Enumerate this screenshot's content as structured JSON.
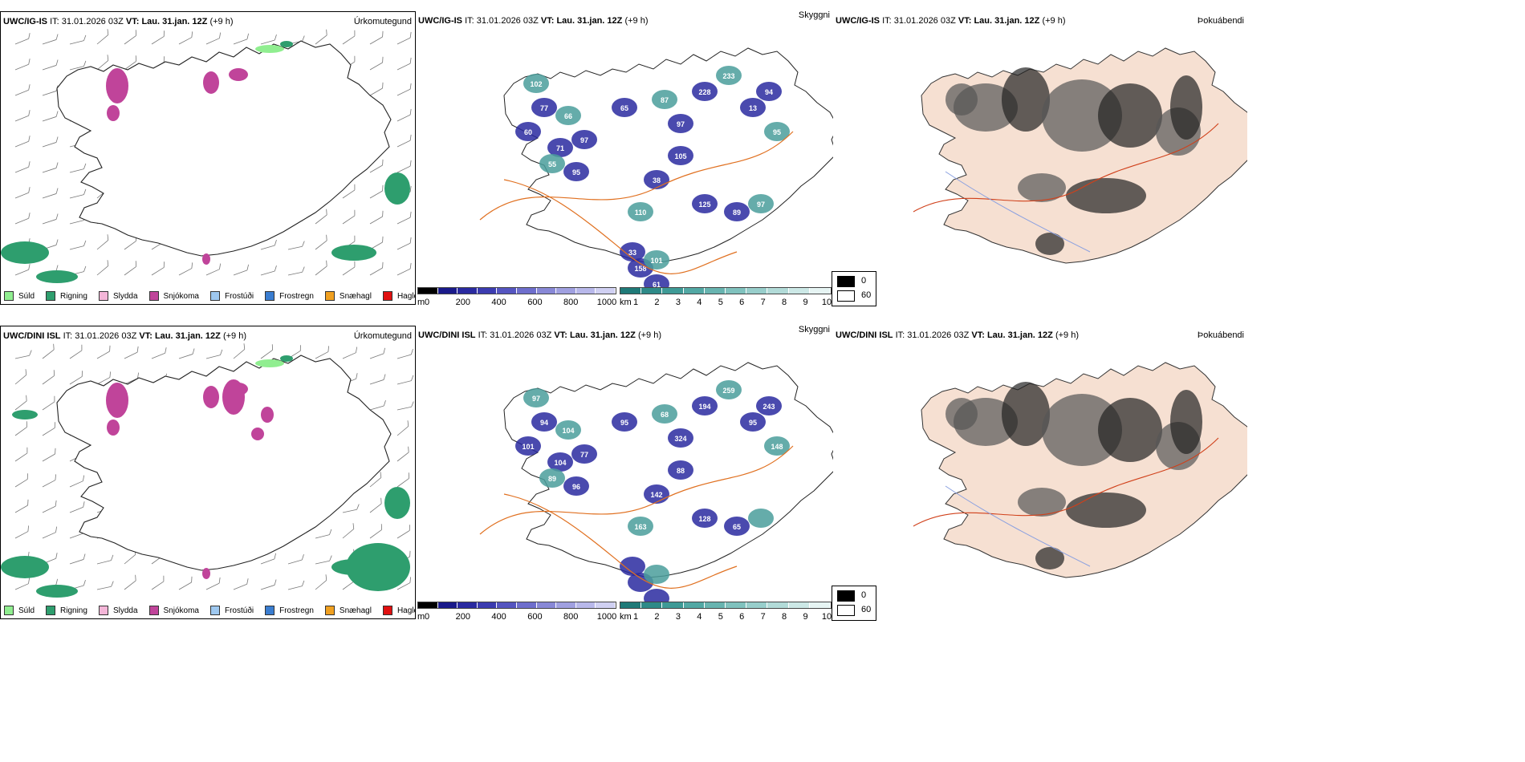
{
  "rows": [
    {
      "id": "ig",
      "model": "UWC/IG-IS",
      "it_label": "IT:",
      "it_value": "31.01.2026 03Z",
      "vt_label": "VT:",
      "vt_value": "Lau. 31.jan. 12Z",
      "lead": "(+9 h)"
    },
    {
      "id": "dini",
      "model": "UWC/DINI ISL",
      "it_label": "IT:",
      "it_value": "31.01.2026 03Z",
      "vt_label": "VT:",
      "vt_value": "Lau. 31.jan. 12Z",
      "lead": "(+9 h)"
    }
  ],
  "panels": {
    "precip": {
      "product": "Úrkomutegund"
    },
    "cloud": {
      "product": "Skyggni"
    },
    "fog": {
      "product": "Þokuábendi"
    }
  },
  "precip_legend": [
    {
      "label": "Súld",
      "color": "#90ee90"
    },
    {
      "label": "Rigning",
      "color": "#2e9e6e"
    },
    {
      "label": "Slydda",
      "color": "#f4b6d8"
    },
    {
      "label": "Snjókoma",
      "color": "#c0449a"
    },
    {
      "label": "Frostúði",
      "color": "#9ec8f0"
    },
    {
      "label": "Frostregn",
      "color": "#3a7dd0"
    },
    {
      "label": "Snæhagl",
      "color": "#f0a020"
    },
    {
      "label": "Haglél",
      "color": "#e01010"
    }
  ],
  "cloud_base_scale": {
    "unit": "m",
    "ticks": [
      "0",
      "200",
      "400",
      "600",
      "800",
      "1000"
    ],
    "colors": [
      "#000000",
      "#1a1a8a",
      "#2a2aa0",
      "#3c3cb0",
      "#5555c0",
      "#6e6ecc",
      "#8888d6",
      "#a0a0e0",
      "#b8b8ea",
      "#d0d0f2"
    ]
  },
  "visibility_scale": {
    "unit": "km",
    "ticks": [
      "1",
      "2",
      "3",
      "4",
      "5",
      "6",
      "7",
      "8",
      "9",
      "10"
    ],
    "colors": [
      "#1f7a78",
      "#2e8a88",
      "#3e9a96",
      "#52a8a4",
      "#68b4b0",
      "#80c2be",
      "#98cecb",
      "#b2dbd8",
      "#cce8e6",
      "#e6f4f3"
    ]
  },
  "fog_legend": {
    "high": "0",
    "low": "60",
    "high_color": "#000000",
    "low_color": "#ffffff"
  },
  "cloud_labels_top": [
    "102",
    "77",
    "60",
    "66",
    "97",
    "71",
    "55",
    "95",
    "65",
    "87",
    "97",
    "228",
    "233",
    "13",
    "94",
    "95",
    "105",
    "38",
    "110",
    "125",
    "89",
    "97",
    "33",
    "158",
    "101",
    "61"
  ],
  "cloud_labels_bottom": [
    "97",
    "94",
    "101",
    "104",
    "77",
    "104",
    "89",
    "96",
    "95",
    "68",
    "324",
    "194",
    "259",
    "95",
    "243",
    "148",
    "88",
    "142",
    "163",
    "128",
    "65"
  ]
}
